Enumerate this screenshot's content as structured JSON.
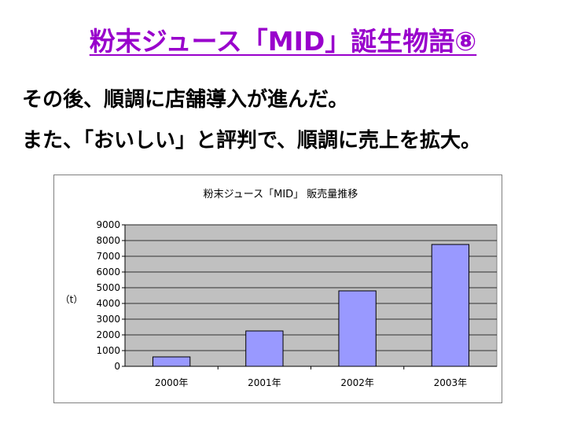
{
  "slide": {
    "title": "粉末ジュース「MID」誕生物語⑧",
    "line1": "その後、順調に店舗導入が進んだ。",
    "line2": "また、「おいしい」と評判で、順調に売上を拡大。"
  },
  "colors": {
    "title": "#9900cc",
    "bar": "#9999ff",
    "plot_area": "#c0c0c0"
  },
  "chart_data": {
    "type": "bar",
    "title": "粉末ジュース「MID」 販売量推移",
    "ylabel": "（t）",
    "xlabel": "",
    "categories": [
      "2000年",
      "2001年",
      "2002年",
      "2003年"
    ],
    "values": [
      600,
      2250,
      4800,
      7750
    ],
    "ylim": [
      0,
      9000
    ],
    "yticks": [
      0,
      1000,
      2000,
      3000,
      4000,
      5000,
      6000,
      7000,
      8000,
      9000
    ],
    "grid": true,
    "legend": "none"
  }
}
